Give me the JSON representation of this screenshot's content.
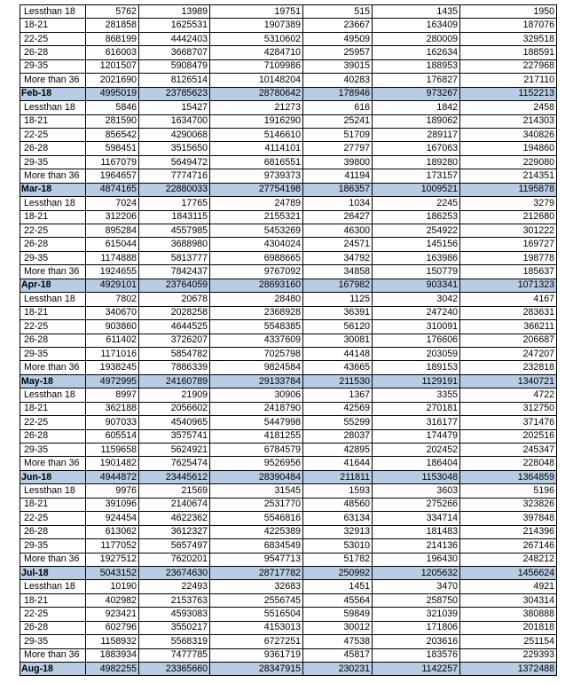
{
  "colors": {
    "total_row_bg": "#b8cce4"
  },
  "rows": [
    {
      "label": "Lessthan 18",
      "values": [
        "5762",
        "13989",
        "19751",
        "515",
        "1435",
        "1950"
      ]
    },
    {
      "label": "18-21",
      "values": [
        "281858",
        "1625531",
        "1907389",
        "23667",
        "163409",
        "187076"
      ]
    },
    {
      "label": "22-25",
      "values": [
        "868199",
        "4442403",
        "5310602",
        "49509",
        "280009",
        "329518"
      ]
    },
    {
      "label": "26-28",
      "values": [
        "616003",
        "3668707",
        "4284710",
        "25957",
        "162634",
        "188591"
      ]
    },
    {
      "label": "29-35",
      "values": [
        "1201507",
        "5908479",
        "7109986",
        "39015",
        "188953",
        "227968"
      ]
    },
    {
      "label": "More than 36",
      "values": [
        "2021690",
        "8126514",
        "10148204",
        "40283",
        "176827",
        "217110"
      ]
    },
    {
      "label": "Feb-18",
      "total": true,
      "values": [
        "4995019",
        "23785623",
        "28780642",
        "178946",
        "973267",
        "1152213"
      ]
    },
    {
      "label": "Lessthan 18",
      "values": [
        "5846",
        "15427",
        "21273",
        "616",
        "1842",
        "2458"
      ]
    },
    {
      "label": "18-21",
      "values": [
        "281590",
        "1634700",
        "1916290",
        "25241",
        "189062",
        "214303"
      ]
    },
    {
      "label": "22-25",
      "values": [
        "856542",
        "4290068",
        "5146610",
        "51709",
        "289117",
        "340826"
      ]
    },
    {
      "label": "26-28",
      "values": [
        "598451",
        "3515650",
        "4114101",
        "27797",
        "167063",
        "194860"
      ]
    },
    {
      "label": "29-35",
      "values": [
        "1167079",
        "5649472",
        "6816551",
        "39800",
        "189280",
        "229080"
      ]
    },
    {
      "label": "More than 36",
      "values": [
        "1964657",
        "7774716",
        "9739373",
        "41194",
        "173157",
        "214351"
      ]
    },
    {
      "label": "Mar-18",
      "total": true,
      "values": [
        "4874165",
        "22880033",
        "27754198",
        "186357",
        "1009521",
        "1195878"
      ]
    },
    {
      "label": "Lessthan 18",
      "values": [
        "7024",
        "17765",
        "24789",
        "1034",
        "2245",
        "3279"
      ]
    },
    {
      "label": "18-21",
      "values": [
        "312206",
        "1843115",
        "2155321",
        "26427",
        "186253",
        "212680"
      ]
    },
    {
      "label": "22-25",
      "values": [
        "895284",
        "4557985",
        "5453269",
        "46300",
        "254922",
        "301222"
      ]
    },
    {
      "label": "26-28",
      "values": [
        "615044",
        "3688980",
        "4304024",
        "24571",
        "145156",
        "169727"
      ]
    },
    {
      "label": "29-35",
      "values": [
        "1174888",
        "5813777",
        "6988665",
        "34792",
        "163986",
        "198778"
      ]
    },
    {
      "label": "More than 36",
      "values": [
        "1924655",
        "7842437",
        "9767092",
        "34858",
        "150779",
        "185637"
      ]
    },
    {
      "label": "Apr-18",
      "total": true,
      "values": [
        "4929101",
        "23764059",
        "28693160",
        "167982",
        "903341",
        "1071323"
      ]
    },
    {
      "label": "Lessthan 18",
      "values": [
        "7802",
        "20678",
        "28480",
        "1125",
        "3042",
        "4167"
      ]
    },
    {
      "label": "18-21",
      "values": [
        "340670",
        "2028258",
        "2368928",
        "36391",
        "247240",
        "283631"
      ]
    },
    {
      "label": "22-25",
      "values": [
        "903860",
        "4644525",
        "5548385",
        "56120",
        "310091",
        "366211"
      ]
    },
    {
      "label": "26-28",
      "values": [
        "611402",
        "3726207",
        "4337609",
        "30081",
        "176606",
        "206687"
      ]
    },
    {
      "label": "29-35",
      "values": [
        "1171016",
        "5854782",
        "7025798",
        "44148",
        "203059",
        "247207"
      ]
    },
    {
      "label": "More than 36",
      "values": [
        "1938245",
        "7886339",
        "9824584",
        "43665",
        "189153",
        "232818"
      ]
    },
    {
      "label": "May-18",
      "total": true,
      "values": [
        "4972995",
        "24160789",
        "29133784",
        "211530",
        "1129191",
        "1340721"
      ]
    },
    {
      "label": "Lessthan 18",
      "values": [
        "8997",
        "21909",
        "30906",
        "1367",
        "3355",
        "4722"
      ]
    },
    {
      "label": "18-21",
      "values": [
        "362188",
        "2056602",
        "2418790",
        "42569",
        "270181",
        "312750"
      ]
    },
    {
      "label": "22-25",
      "values": [
        "907033",
        "4540965",
        "5447998",
        "55299",
        "316177",
        "371476"
      ]
    },
    {
      "label": "26-28",
      "values": [
        "605514",
        "3575741",
        "4181255",
        "28037",
        "174479",
        "202516"
      ]
    },
    {
      "label": "29-35",
      "values": [
        "1159658",
        "5624921",
        "6784579",
        "42895",
        "202452",
        "245347"
      ]
    },
    {
      "label": "More than 36",
      "values": [
        "1901482",
        "7625474",
        "9526956",
        "41644",
        "186404",
        "228048"
      ]
    },
    {
      "label": "Jun-18",
      "total": true,
      "values": [
        "4944872",
        "23445612",
        "28390484",
        "211811",
        "1153048",
        "1364859"
      ]
    },
    {
      "label": "Lessthan 18",
      "values": [
        "9976",
        "21569",
        "31545",
        "1593",
        "3603",
        "5196"
      ]
    },
    {
      "label": "18-21",
      "values": [
        "391096",
        "2140674",
        "2531770",
        "48560",
        "275266",
        "323826"
      ]
    },
    {
      "label": "22-25",
      "values": [
        "924454",
        "4622362",
        "5546816",
        "63134",
        "334714",
        "397848"
      ]
    },
    {
      "label": "26-28",
      "values": [
        "613062",
        "3612327",
        "4225389",
        "32913",
        "181483",
        "214396"
      ]
    },
    {
      "label": "29-35",
      "values": [
        "1177052",
        "5657497",
        "6834549",
        "53010",
        "214136",
        "267146"
      ]
    },
    {
      "label": "More than 36",
      "values": [
        "1927512",
        "7620201",
        "9547713",
        "51782",
        "196430",
        "248212"
      ]
    },
    {
      "label": "Jul-18",
      "total": true,
      "values": [
        "5043152",
        "23674630",
        "28717782",
        "250992",
        "1205632",
        "1456624"
      ]
    },
    {
      "label": "Lessthan 18",
      "values": [
        "10190",
        "22493",
        "32683",
        "1451",
        "3470",
        "4921"
      ]
    },
    {
      "label": "18-21",
      "values": [
        "402982",
        "2153763",
        "2556745",
        "45564",
        "258750",
        "304314"
      ]
    },
    {
      "label": "22-25",
      "values": [
        "923421",
        "4593083",
        "5516504",
        "59849",
        "321039",
        "380888"
      ]
    },
    {
      "label": "26-28",
      "values": [
        "602796",
        "3550217",
        "4153013",
        "30012",
        "171806",
        "201818"
      ]
    },
    {
      "label": "29-35",
      "values": [
        "1158932",
        "5568319",
        "6727251",
        "47538",
        "203616",
        "251154"
      ]
    },
    {
      "label": "More than 36",
      "values": [
        "1883934",
        "7477785",
        "9361719",
        "45817",
        "183576",
        "229393"
      ]
    },
    {
      "label": "Aug-18",
      "total": true,
      "values": [
        "4982255",
        "23365660",
        "28347915",
        "230231",
        "1142257",
        "1372488"
      ]
    }
  ]
}
